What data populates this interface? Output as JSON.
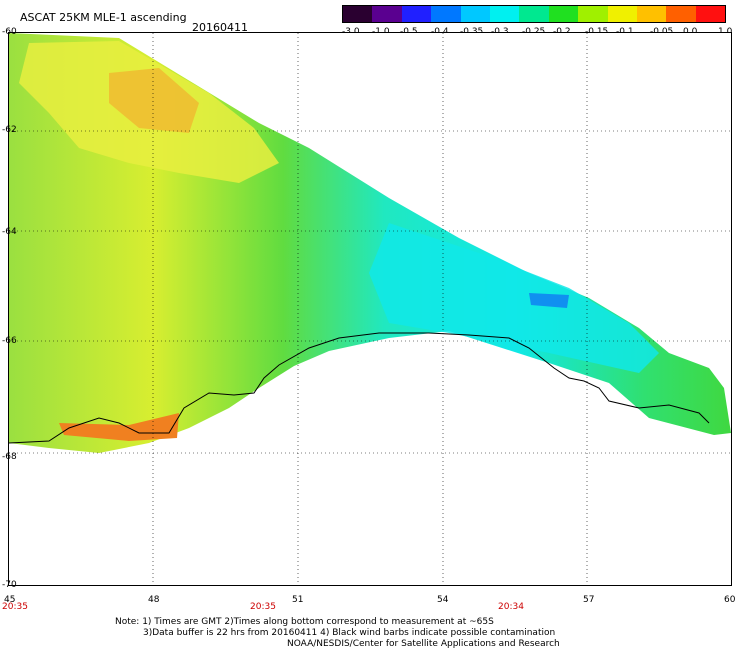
{
  "header": {
    "title": "ASCAT 25KM MLE-1 ascending",
    "date": "20160411"
  },
  "colorbar": {
    "labels": [
      "-3.0",
      "-1.0",
      "-0.5",
      "-0.4",
      "-0.35",
      "-0.3",
      "-0.25",
      "-0.2",
      "-0.15",
      "-0.1",
      "-0.05",
      "0.0",
      "1.0"
    ],
    "colors": [
      "#2a0030",
      "#5a0090",
      "#2020ff",
      "#0078ff",
      "#00c8ff",
      "#00f0f0",
      "#00e890",
      "#20e020",
      "#a0f000",
      "#f0f000",
      "#ffc000",
      "#ff6000",
      "#ff1010"
    ]
  },
  "map": {
    "lat_labels": [
      "-60",
      "-62",
      "-64",
      "-66",
      "-68",
      "-70"
    ],
    "lon_labels": [
      "45",
      "48",
      "51",
      "54",
      "57",
      "60"
    ],
    "time_labels": [
      "20:35",
      "20:35",
      "20:34"
    ],
    "swath_colors": {
      "yellow": "#e8f040",
      "orange": "#f0b030",
      "green": "#40d840",
      "lightgreen": "#80e050",
      "cyan": "#10e8e0",
      "blue": "#1090f0"
    }
  },
  "notes": {
    "line1": "Note: 1) Times are GMT 2)Times along bottom correspond to measurement at ~65S",
    "line2": "3)Data buffer is 22 hrs from 20160411 4) Black wind barbs indicate possible contamination",
    "line3": "NOAA/NESDIS/Center for Satellite Applications and Research"
  }
}
